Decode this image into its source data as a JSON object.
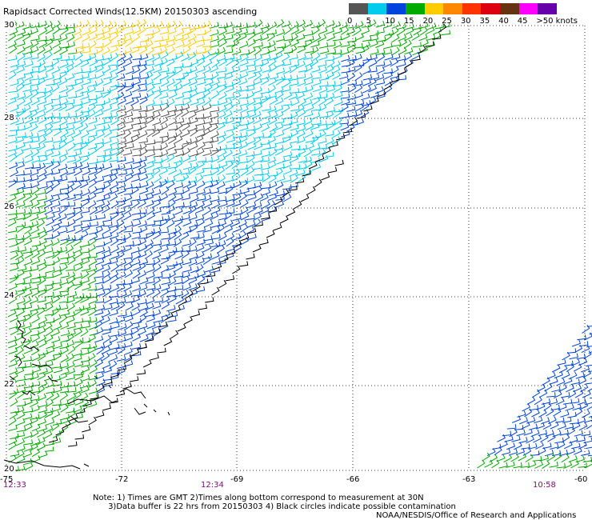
{
  "title": "Rapidsact Corrected Winds(12.5KM) 20150303 ascending",
  "legend": {
    "labels": [
      "0",
      "5",
      "10",
      "15",
      "20",
      "25",
      "30",
      "35",
      "40",
      "45",
      ">50 knots"
    ],
    "colors": [
      "#555555",
      "#00ccee",
      "#0044dd",
      "#00aa00",
      "#ffcc00",
      "#ff8800",
      "#ff3300",
      "#dd0011",
      "#663311",
      "#ff00ff",
      "#6600aa"
    ]
  },
  "map": {
    "lon_range": [
      -75,
      -60
    ],
    "lat_range": [
      20,
      30
    ],
    "lat_labels": [
      "30",
      "28",
      "26",
      "24",
      "22",
      "20"
    ],
    "lon_labels": [
      "-75",
      "-72",
      "-69",
      "-66",
      "-63",
      "-60"
    ],
    "time_labels": [
      "12:33",
      "12:34",
      "10:58"
    ],
    "grid_color": "#000000",
    "colors": {
      "coast": "#000000",
      "wind_fast": "#00aa00",
      "wind_mid": "#0044dd",
      "wind_slow": "#00ccee",
      "wind_strong": "#ffcc00",
      "wind_calm": "#555555",
      "contaminated": "#000000"
    }
  },
  "notes": "Note: 1) Times are GMT 2)Times along bottom correspond to measurement at 30N\n      3)Data buffer is 22 hrs from 20150303 4) Black circles indicate possible contamination",
  "credit": "NOAA/NESDIS/Office of Research and Applications"
}
